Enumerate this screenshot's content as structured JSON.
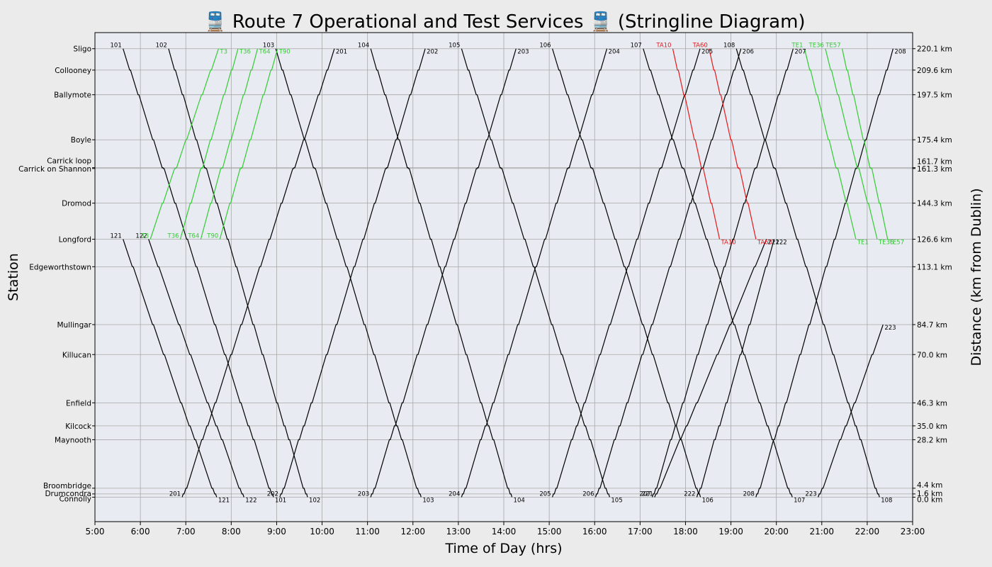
{
  "chart_data": {
    "type": "line",
    "title": "Route 7 Operational and Test Services",
    "title_suffix": "(Stringline Diagram)",
    "title_icon": "train-front-icon",
    "xlabel": "Time of Day (hrs)",
    "ylabel": "Station",
    "ylabel_right": "Distance (km from Dublin)",
    "xlim": [
      5,
      23
    ],
    "ylim": [
      -12,
      228
    ],
    "grid": true,
    "x_ticks": [
      "5:00",
      "6:00",
      "7:00",
      "8:00",
      "9:00",
      "10:00",
      "11:00",
      "12:00",
      "13:00",
      "14:00",
      "15:00",
      "16:00",
      "17:00",
      "18:00",
      "19:00",
      "20:00",
      "21:00",
      "22:00",
      "23:00"
    ],
    "colors": {
      "operational": "#000000",
      "test_upline": "#33cc33",
      "test_downline_red": "#e31a1c",
      "plot_bg": "#e8ebf1",
      "grid": "#a8a8a8"
    },
    "stations": [
      {
        "name": "Sligo",
        "km": 220.1,
        "km_label": "220.1 km"
      },
      {
        "name": "Collooney",
        "km": 209.6,
        "km_label": "209.6 km"
      },
      {
        "name": "Ballymote",
        "km": 197.5,
        "km_label": "197.5 km"
      },
      {
        "name": "Boyle",
        "km": 175.4,
        "km_label": "175.4 km"
      },
      {
        "name": "Carrick loop",
        "km": 161.7,
        "km_label": "161.7 km"
      },
      {
        "name": "Carrick on Shannon",
        "km": 161.3,
        "km_label": "161.3 km"
      },
      {
        "name": "Dromod",
        "km": 144.3,
        "km_label": "144.3 km"
      },
      {
        "name": "Longford",
        "km": 126.6,
        "km_label": "126.6 km"
      },
      {
        "name": "Edgeworthstown",
        "km": 113.1,
        "km_label": "113.1 km"
      },
      {
        "name": "Mullingar",
        "km": 84.7,
        "km_label": "84.7 km"
      },
      {
        "name": "Killucan",
        "km": 70.0,
        "km_label": "70.0 km"
      },
      {
        "name": "Enfield",
        "km": 46.3,
        "km_label": "46.3 km"
      },
      {
        "name": "Kilcock",
        "km": 35.0,
        "km_label": "35.0 km"
      },
      {
        "name": "Maynooth",
        "km": 28.2,
        "km_label": "28.2 km"
      },
      {
        "name": "Broombridge",
        "km": 4.4,
        "km_label": "4.4 km"
      },
      {
        "name": "Drumcondra",
        "km": 1.6,
        "km_label": "1.6 km"
      },
      {
        "name": "Connolly",
        "km": 0.0,
        "km_label": "0.0 km"
      }
    ],
    "series": [
      {
        "name": "101",
        "color": "black",
        "from": "Sligo",
        "to": "Connolly",
        "depart": 5.62,
        "arrive": 8.93
      },
      {
        "name": "102",
        "color": "black",
        "from": "Sligo",
        "to": "Connolly",
        "depart": 6.62,
        "arrive": 9.68
      },
      {
        "name": "103",
        "color": "black",
        "from": "Sligo",
        "to": "Connolly",
        "depart": 8.98,
        "arrive": 12.18
      },
      {
        "name": "104",
        "color": "black",
        "from": "Sligo",
        "to": "Connolly",
        "depart": 11.07,
        "arrive": 14.18
      },
      {
        "name": "105",
        "color": "black",
        "from": "Sligo",
        "to": "Connolly",
        "depart": 13.07,
        "arrive": 16.33
      },
      {
        "name": "106",
        "color": "black",
        "from": "Sligo",
        "to": "Connolly",
        "depart": 15.07,
        "arrive": 18.33
      },
      {
        "name": "107",
        "color": "black",
        "from": "Sligo",
        "to": "Connolly",
        "depart": 17.07,
        "arrive": 20.35
      },
      {
        "name": "108",
        "color": "black",
        "from": "Sligo",
        "to": "Connolly",
        "depart": 19.12,
        "arrive": 22.27
      },
      {
        "name": "121",
        "color": "black",
        "from": "Longford",
        "to": "Connolly",
        "depart": 5.62,
        "arrive": 7.68
      },
      {
        "name": "122",
        "color": "black",
        "from": "Longford",
        "to": "Connolly",
        "depart": 6.18,
        "arrive": 8.28
      },
      {
        "name": "201",
        "color": "black",
        "from": "Connolly",
        "to": "Sligo",
        "depart": 6.92,
        "arrive": 10.27
      },
      {
        "name": "202",
        "color": "black",
        "from": "Connolly",
        "to": "Sligo",
        "depart": 9.07,
        "arrive": 12.27
      },
      {
        "name": "203",
        "color": "black",
        "from": "Connolly",
        "to": "Sligo",
        "depart": 11.07,
        "arrive": 14.27
      },
      {
        "name": "204",
        "color": "black",
        "from": "Connolly",
        "to": "Sligo",
        "depart": 13.07,
        "arrive": 16.27
      },
      {
        "name": "205",
        "color": "black",
        "from": "Connolly",
        "to": "Sligo",
        "depart": 15.07,
        "arrive": 18.32
      },
      {
        "name": "206",
        "color": "black",
        "from": "Connolly",
        "to": "Sligo",
        "depart": 16.02,
        "arrive": 19.22
      },
      {
        "name": "207",
        "color": "black",
        "from": "Connolly",
        "to": "Sligo",
        "depart": 17.27,
        "arrive": 20.37
      },
      {
        "name": "208",
        "color": "black",
        "from": "Connolly",
        "to": "Sligo",
        "depart": 19.55,
        "arrive": 22.57
      },
      {
        "name": "221",
        "color": "black",
        "from": "Connolly",
        "to": "Longford",
        "depart": 17.32,
        "arrive": 19.78
      },
      {
        "name": "222",
        "color": "black",
        "from": "Connolly",
        "to": "Longford",
        "depart": 18.25,
        "arrive": 19.95
      },
      {
        "name": "223",
        "color": "black",
        "from": "Connolly",
        "to": "Mullingar",
        "depart": 20.92,
        "arrive": 22.35
      },
      {
        "name": "T3",
        "color": "green",
        "from": "Longford",
        "to": "Sligo",
        "depart": 6.22,
        "arrive": 7.72
      },
      {
        "name": "T36",
        "color": "green",
        "from": "Longford",
        "to": "Sligo",
        "depart": 6.88,
        "arrive": 8.15
      },
      {
        "name": "T64",
        "color": "green",
        "from": "Longford",
        "to": "Sligo",
        "depart": 7.33,
        "arrive": 8.58
      },
      {
        "name": "T90",
        "color": "green",
        "from": "Longford",
        "to": "Sligo",
        "depart": 7.75,
        "arrive": 9.02
      },
      {
        "name": "TE1",
        "color": "green",
        "from": "Sligo",
        "to": "Longford",
        "depart": 20.62,
        "arrive": 21.75
      },
      {
        "name": "TE36",
        "color": "green",
        "from": "Sligo",
        "to": "Longford",
        "depart": 21.08,
        "arrive": 22.22
      },
      {
        "name": "TE57",
        "color": "green",
        "from": "Sligo",
        "to": "Longford",
        "depart": 21.45,
        "arrive": 22.45
      },
      {
        "name": "TA10",
        "color": "red",
        "from": "Sligo",
        "to": "Longford",
        "depart": 17.72,
        "arrive": 18.75
      },
      {
        "name": "TA60",
        "color": "red",
        "from": "Sligo",
        "to": "Longford",
        "depart": 18.52,
        "arrive": 19.55
      }
    ]
  }
}
